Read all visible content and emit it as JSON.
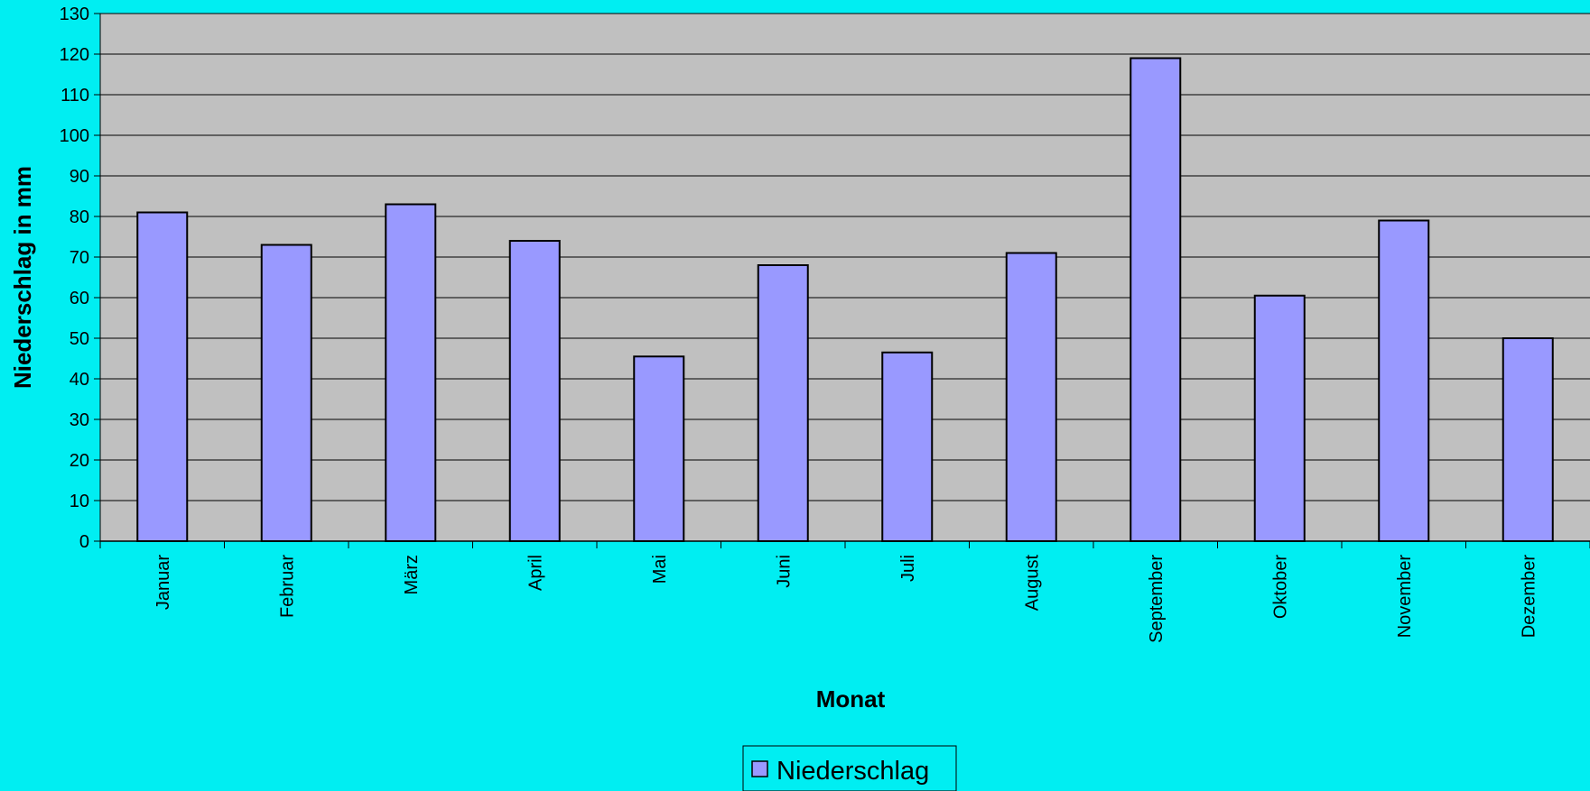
{
  "chart_data": {
    "type": "bar",
    "title": "",
    "xlabel": "Monat",
    "ylabel": "Niederschlag in mm",
    "ylim": [
      0,
      130
    ],
    "y_ticks": [
      0,
      10,
      20,
      30,
      40,
      50,
      60,
      70,
      80,
      90,
      100,
      110,
      120,
      130
    ],
    "categories": [
      "Januar",
      "Februar",
      "März",
      "April",
      "Mai",
      "Juni",
      "Juli",
      "August",
      "September",
      "Oktober",
      "November",
      "Dezember"
    ],
    "series": [
      {
        "name": "Niederschlag",
        "values": [
          81,
          73,
          83,
          74,
          45.5,
          68,
          46.5,
          71,
          119,
          60.5,
          79,
          50
        ]
      }
    ],
    "grid": true,
    "legend_position": "bottom"
  },
  "colors": {
    "background": "#00EEF2",
    "plot_area": "#C0C0C0",
    "bar_fill": "#9999FF",
    "bar_stroke": "#000000",
    "gridline": "#000000"
  }
}
